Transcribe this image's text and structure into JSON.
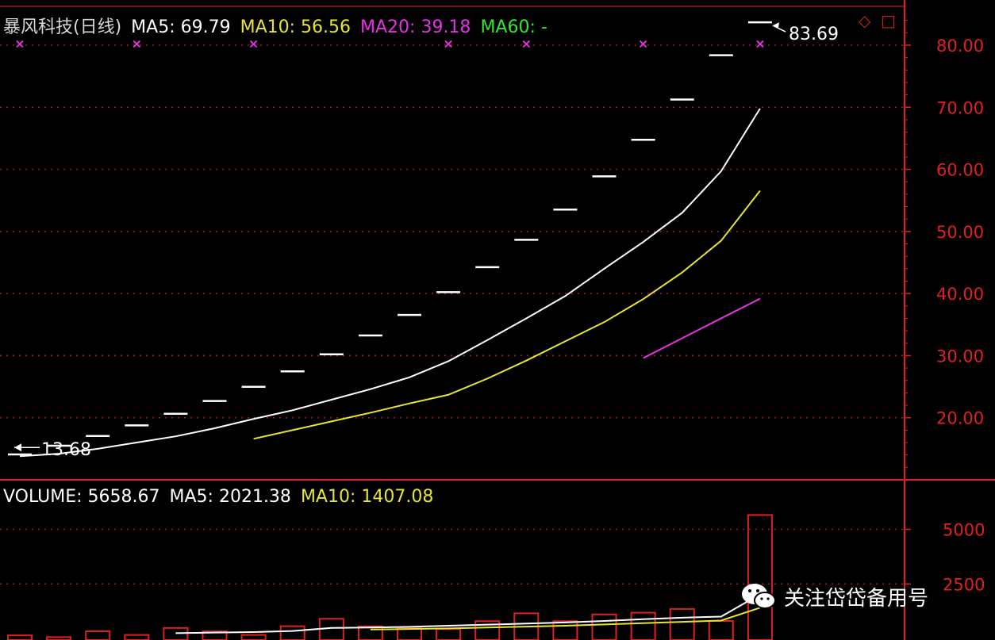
{
  "price_header": {
    "stock_name": "暴风科技(日线)",
    "ma5_label": "MA5: 69.79",
    "ma10_label": "MA10: 56.56",
    "ma20_label": "MA20: 39.18",
    "ma60_label": "MA60: -"
  },
  "volume_header": {
    "volume_label": "VOLUME: 5658.67",
    "ma5_label": "MA5: 2021.38",
    "ma10_label": "MA10: 1407.08"
  },
  "annotations": {
    "high": "83.69",
    "low": "13.68"
  },
  "watermark": "关注岱岱备用号",
  "colors": {
    "background": "#000000",
    "axis": "#e02020",
    "grid": "#b01818",
    "candle": "#ffffff",
    "ma5": "#ffffff",
    "ma10": "#e6e632",
    "ma20": "#e632e6",
    "ma60": "#32e632",
    "volume_bar": "#e02020"
  },
  "chart_data": [
    {
      "type": "line",
      "title": "暴风科技(日线)",
      "ylim": [
        10,
        86
      ],
      "y_ticks": [
        20,
        30,
        40,
        50,
        60,
        70,
        80
      ],
      "y_tick_labels": [
        "20.00",
        "30.00",
        "40.00",
        "50.00",
        "60.00",
        "70.00",
        "80.00"
      ],
      "grid": true,
      "x": [
        1,
        2,
        3,
        4,
        5,
        6,
        7,
        8,
        9,
        10,
        11,
        12,
        13,
        14,
        15,
        16,
        17,
        18,
        19,
        20
      ],
      "candles_close": [
        14.09,
        15.5,
        17.05,
        18.76,
        20.64,
        22.7,
        24.97,
        27.47,
        30.22,
        33.24,
        36.56,
        40.22,
        44.24,
        48.66,
        53.53,
        58.88,
        64.77,
        71.25,
        78.38,
        83.69
      ],
      "series": [
        {
          "name": "MA5",
          "values": [
            13.8,
            14.2,
            15.0,
            16.0,
            17.0,
            18.3,
            19.8,
            21.2,
            22.9,
            24.6,
            26.5,
            29.1,
            32.5,
            36.0,
            39.6,
            44.0,
            48.3,
            53.0,
            59.7,
            69.79
          ]
        },
        {
          "name": "MA10",
          "values": [
            null,
            null,
            null,
            null,
            null,
            null,
            16.6,
            18.0,
            19.4,
            20.8,
            22.3,
            23.7,
            26.3,
            29.2,
            32.3,
            35.4,
            39.1,
            43.4,
            48.5,
            56.56
          ]
        },
        {
          "name": "MA20",
          "values": [
            null,
            null,
            null,
            null,
            null,
            null,
            null,
            null,
            null,
            null,
            null,
            null,
            null,
            null,
            null,
            null,
            29.6,
            32.8,
            36.0,
            39.18
          ]
        }
      ],
      "markers": [
        {
          "type": "x",
          "x": 1,
          "y": 80.3
        },
        {
          "type": "x",
          "x": 4,
          "y": 80.3
        },
        {
          "type": "x",
          "x": 7,
          "y": 80.3
        },
        {
          "type": "x",
          "x": 12,
          "y": 80.3
        },
        {
          "type": "x",
          "x": 14,
          "y": 80.3
        },
        {
          "type": "x",
          "x": 17,
          "y": 80.3
        },
        {
          "type": "x",
          "x": 20,
          "y": 80.3
        }
      ]
    },
    {
      "type": "bar",
      "title": "VOLUME",
      "ylim": [
        0,
        6000
      ],
      "y_ticks": [
        5000,
        2500
      ],
      "y_tick_labels": [
        "5000",
        "2500"
      ],
      "grid": true,
      "x": [
        1,
        2,
        3,
        4,
        5,
        6,
        7,
        8,
        9,
        10,
        11,
        12,
        13,
        14,
        15,
        16,
        17,
        18,
        19,
        20
      ],
      "values": [
        140,
        60,
        330,
        160,
        480,
        320,
        160,
        560,
        900,
        550,
        470,
        430,
        790,
        1150,
        790,
        1100,
        1180,
        1350,
        800,
        5658.67
      ],
      "series": [
        {
          "name": "MA5",
          "values": [
            null,
            null,
            null,
            null,
            240,
            270,
            290,
            340,
            480,
            500,
            530,
            580,
            630,
            680,
            730,
            800,
            880,
            950,
            1000,
            2021.38
          ]
        },
        {
          "name": "MA10",
          "values": [
            null,
            null,
            null,
            null,
            null,
            null,
            null,
            null,
            null,
            410,
            430,
            460,
            500,
            540,
            580,
            640,
            700,
            760,
            820,
            1407.08
          ]
        }
      ]
    }
  ]
}
